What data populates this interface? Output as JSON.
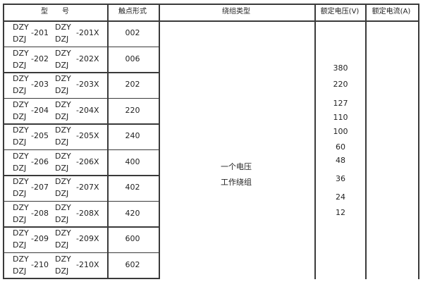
{
  "headers": {
    "model": "型　　号",
    "contact": "触点形式",
    "winding": "绕组类型",
    "voltage": "额定电压(V)",
    "current": "额定电流(A)"
  },
  "rows": [
    {
      "a": "DZY",
      "b": "DZJ",
      "num": "-201",
      "c": "DZY",
      "d": "DZJ",
      "numx": "-201X",
      "contact": "002"
    },
    {
      "a": "DZY",
      "b": "DZJ",
      "num": "-202",
      "c": "DZY",
      "d": "DZJ",
      "numx": "-202X",
      "contact": "006"
    },
    {
      "a": "DZY",
      "b": "DZJ",
      "num": "-203",
      "c": "DZY",
      "d": "DZJ",
      "numx": "-203X",
      "contact": "202"
    },
    {
      "a": "DZY",
      "b": "DZJ",
      "num": "-204",
      "c": "DZY",
      "d": "DZJ",
      "numx": "-204X",
      "contact": "220"
    },
    {
      "a": "DZY",
      "b": "DZJ",
      "num": "-205",
      "c": "DZY",
      "d": "DZJ",
      "numx": "-205X",
      "contact": "240"
    },
    {
      "a": "DZY",
      "b": "DZJ",
      "num": "-206",
      "c": "DZY",
      "d": "DZJ",
      "numx": "-206X",
      "contact": "400"
    },
    {
      "a": "DZY",
      "b": "DZJ",
      "num": "-207",
      "c": "DZY",
      "d": "DZJ",
      "numx": "-207X",
      "contact": "402"
    },
    {
      "a": "DZY",
      "b": "DZJ",
      "num": "-208",
      "c": "DZY",
      "d": "DZJ",
      "numx": "-208X",
      "contact": "420"
    },
    {
      "a": "DZY",
      "b": "DZJ",
      "num": "-209",
      "c": "DZY",
      "d": "DZJ",
      "numx": "-209X",
      "contact": "600"
    },
    {
      "a": "DZY",
      "b": "DZJ",
      "num": "-210",
      "c": "DZY",
      "d": "DZJ",
      "numx": "-210X",
      "contact": "602"
    }
  ],
  "winding": [
    "一个电压",
    "工作绕组"
  ],
  "voltages": [
    "380",
    "220",
    "127",
    "110",
    "100",
    "60",
    "48",
    "36",
    "24",
    "12"
  ]
}
